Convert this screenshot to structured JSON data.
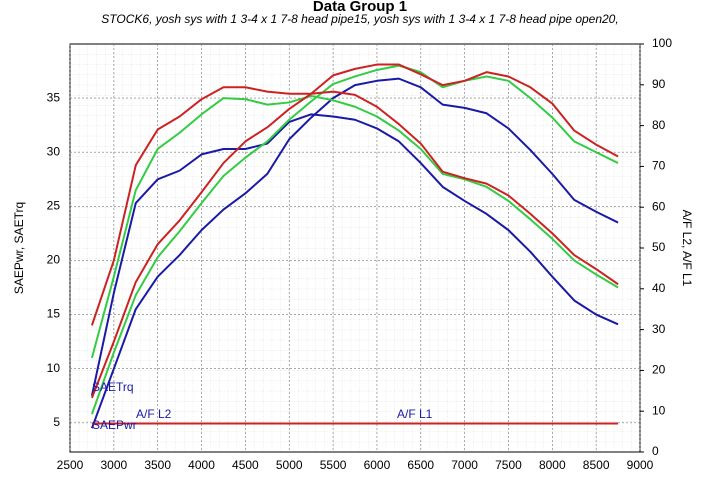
{
  "chart_data": {
    "type": "line",
    "title": "Data Group 1",
    "subtitle": "STOCK6, yosh sys with 1 3-4 x 1 7-8 head pipe15, yosh sys with 1 3-4 x 1 7-8 head pipe open20,",
    "ylabel": "SAEPwr, SAETrq",
    "y2label": "A/F L2, A/F L1",
    "annotations": [
      "SAETrq",
      "SAEPwr",
      "A/F L2",
      "A/F L1"
    ],
    "x": [
      2750,
      3000,
      3250,
      3500,
      3750,
      4000,
      4250,
      4500,
      4750,
      5000,
      5250,
      5500,
      5750,
      6000,
      6250,
      6500,
      6750,
      7000,
      7250,
      7500,
      7750,
      8000,
      8250,
      8500,
      8750
    ],
    "xlim": [
      2500,
      9000
    ],
    "xticks": [
      2500,
      3000,
      3500,
      4000,
      4500,
      5000,
      5500,
      6000,
      6500,
      7000,
      7500,
      8000,
      8500,
      9000
    ],
    "ylim": [
      2.3,
      40
    ],
    "yticks": [
      5,
      10,
      15,
      20,
      25,
      30,
      35
    ],
    "y2lim": [
      0,
      100
    ],
    "y2ticks": [
      0,
      10,
      20,
      30,
      40,
      50,
      60,
      70,
      80,
      90,
      100
    ],
    "grid": true,
    "series": [
      {
        "color": "#1a1aa6",
        "values": [
          7.5,
          17,
          25.3,
          27.5,
          28.3,
          29.8,
          30.3,
          30.3,
          30.8,
          32.8,
          33.5,
          33.3,
          33.0,
          32.2,
          31.0,
          29.0,
          26.8,
          25.5,
          24.3,
          22.8,
          20.8,
          18.5,
          16.3,
          15.0,
          14.1
        ]
      },
      {
        "color": "#1a1aa6",
        "values": [
          4.5,
          10,
          15.5,
          18.5,
          20.5,
          22.8,
          24.7,
          26.2,
          28,
          31.2,
          33.2,
          35,
          36.2,
          36.6,
          36.8,
          36.0,
          34.4,
          34.1,
          33.6,
          32.2,
          30.2,
          28,
          25.6,
          24.5,
          23.5
        ]
      },
      {
        "color": "#33cc44",
        "values": [
          11,
          18.5,
          26.5,
          30.3,
          31.8,
          33.5,
          35,
          34.9,
          34.4,
          34.6,
          35.2,
          34.8,
          34.2,
          33.3,
          32,
          30.3,
          28,
          27.5,
          26.8,
          25.5,
          23.8,
          22,
          20,
          18.7,
          17.5
        ]
      },
      {
        "color": "#33cc44",
        "values": [
          5.8,
          11.5,
          16.8,
          20.3,
          22.7,
          25.3,
          27.8,
          29.5,
          31,
          33.0,
          34.7,
          36.3,
          37,
          37.6,
          38.0,
          37.4,
          36.0,
          36.6,
          37.0,
          36.6,
          35.0,
          33.2,
          31.0,
          30.0,
          29.0
        ]
      },
      {
        "color": "#cc2222",
        "values": [
          14,
          20,
          28.8,
          32.1,
          33.3,
          34.9,
          36,
          36,
          35.6,
          35.4,
          35.4,
          35.6,
          35.3,
          34.2,
          32.6,
          30.8,
          28.2,
          27.6,
          27.1,
          26,
          24.3,
          22.5,
          20.5,
          19.2,
          17.8
        ]
      },
      {
        "color": "#cc2222",
        "values": [
          7.3,
          12.5,
          18,
          21.5,
          23.7,
          26.3,
          29,
          31,
          32.3,
          34,
          35.4,
          37.1,
          37.7,
          38.1,
          38.1,
          37.2,
          36.2,
          36.6,
          37.4,
          37.0,
          36.0,
          34.5,
          32,
          30.7,
          29.6
        ]
      },
      {
        "color": "#cc2222",
        "axis": "y2",
        "values": [
          7,
          7,
          7,
          7,
          7,
          7,
          7,
          7,
          7,
          7,
          7,
          7,
          7,
          7,
          7,
          7,
          7,
          7,
          7,
          7,
          7,
          7,
          7,
          7,
          7
        ]
      }
    ]
  }
}
